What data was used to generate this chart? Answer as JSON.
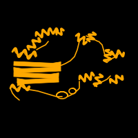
{
  "background_color": "#000000",
  "protein_color": "#FFA800",
  "figure_size": [
    2.0,
    2.0
  ],
  "dpi": 100,
  "lw_helix": 2.0,
  "lw_strand": 2.5,
  "lw_coil": 1.2
}
